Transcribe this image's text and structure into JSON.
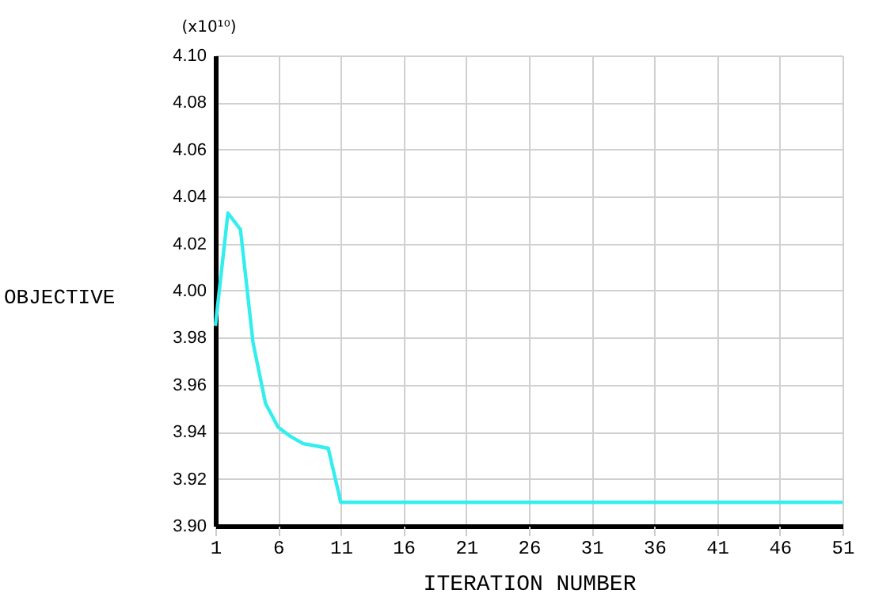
{
  "chart_data": {
    "type": "line",
    "xlabel": "ITERATION NUMBER",
    "ylabel": "OBJECTIVE",
    "annotations": [
      "(x10¹⁰)"
    ],
    "x": [
      1,
      2,
      3,
      4,
      5,
      6,
      7,
      8,
      9,
      10,
      11,
      12,
      13,
      14,
      15,
      16,
      17,
      18,
      19,
      20,
      21,
      22,
      23,
      24,
      25,
      26,
      27,
      28,
      29,
      30,
      31,
      32,
      33,
      34,
      35,
      36,
      37,
      38,
      39,
      40,
      41,
      42,
      43,
      44,
      45,
      46,
      47,
      48,
      49,
      50,
      51
    ],
    "series": [
      {
        "color": "#33eeee",
        "values": [
          3.985,
          4.033,
          4.026,
          3.978,
          3.952,
          3.942,
          3.938,
          3.935,
          3.934,
          3.933,
          3.91,
          3.91,
          3.91,
          3.91,
          3.91,
          3.91,
          3.91,
          3.91,
          3.91,
          3.91,
          3.91,
          3.91,
          3.91,
          3.91,
          3.91,
          3.91,
          3.91,
          3.91,
          3.91,
          3.91,
          3.91,
          3.91,
          3.91,
          3.91,
          3.91,
          3.91,
          3.91,
          3.91,
          3.91,
          3.91,
          3.91,
          3.91,
          3.91,
          3.91,
          3.91,
          3.91,
          3.91,
          3.91,
          3.91,
          3.91,
          3.91
        ]
      }
    ],
    "xlim": [
      1,
      51
    ],
    "xticks": [
      1,
      6,
      11,
      16,
      21,
      26,
      31,
      36,
      41,
      46,
      51
    ],
    "ylim": [
      3.9,
      4.1
    ],
    "yticks": [
      {
        "value": 3.9,
        "label": "3.90"
      },
      {
        "value": 3.92,
        "label": "3.92"
      },
      {
        "value": 3.94,
        "label": "3.94"
      },
      {
        "value": 3.96,
        "label": "3.96"
      },
      {
        "value": 3.98,
        "label": "3.98"
      },
      {
        "value": 4.0,
        "label": "4.00"
      },
      {
        "value": 4.02,
        "label": "4.02"
      },
      {
        "value": 4.04,
        "label": "4.04"
      },
      {
        "value": 4.06,
        "label": "4.06"
      },
      {
        "value": 4.08,
        "label": "4.08"
      },
      {
        "value": 4.1,
        "label": "4.10"
      }
    ],
    "grid": true,
    "marker": "none",
    "line_style": "solid"
  }
}
